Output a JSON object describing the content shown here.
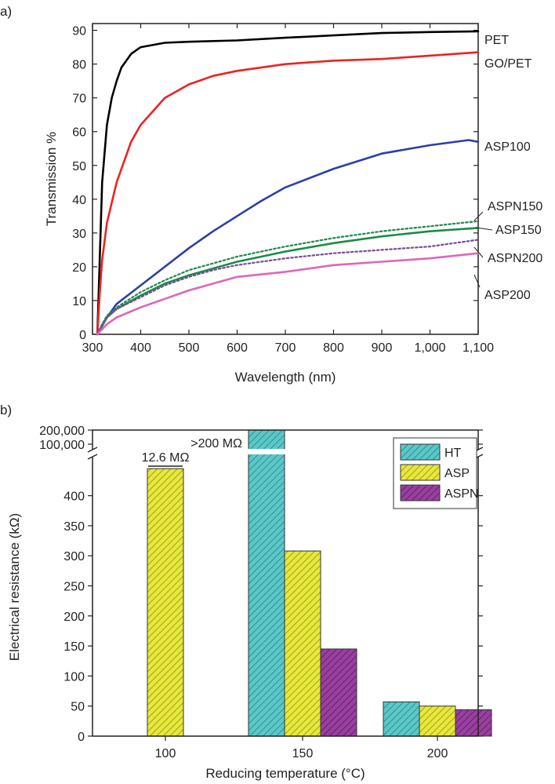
{
  "chart_data": [
    {
      "panel": "a)",
      "type": "line",
      "xlabel": "Wavelength (nm)",
      "ylabel": "Transmission %",
      "xlim": [
        300,
        1100
      ],
      "ylim": [
        0,
        92
      ],
      "xticks": [
        300,
        400,
        500,
        600,
        700,
        800,
        900,
        1000,
        1100
      ],
      "xtick_labels": [
        "300",
        "400",
        "500",
        "600",
        "700",
        "800",
        "900",
        "1,000",
        "1,100"
      ],
      "yticks": [
        0,
        10,
        20,
        30,
        40,
        50,
        60,
        70,
        80,
        90
      ],
      "series": [
        {
          "name": "PET",
          "color": "#000000",
          "style": "solid",
          "x": [
            310,
            315,
            320,
            330,
            340,
            350,
            360,
            380,
            400,
            450,
            500,
            600,
            700,
            800,
            900,
            1000,
            1100
          ],
          "y": [
            0,
            22,
            45,
            62,
            70,
            75,
            79,
            83,
            85,
            86.3,
            86.6,
            87,
            87.8,
            88.5,
            89.2,
            89.5,
            89.7
          ]
        },
        {
          "name": "GO/PET",
          "color": "#ee2222",
          "style": "solid",
          "x": [
            310,
            315,
            320,
            330,
            350,
            380,
            400,
            450,
            500,
            550,
            600,
            700,
            800,
            900,
            1000,
            1100
          ],
          "y": [
            0,
            12,
            22,
            33,
            45,
            57,
            62,
            70,
            74,
            76.5,
            78,
            80,
            81,
            81.5,
            82.5,
            83.5
          ]
        },
        {
          "name": "ASP100",
          "color": "#2b3fa8",
          "style": "solid",
          "x": [
            310,
            320,
            330,
            350,
            400,
            450,
            500,
            550,
            600,
            650,
            700,
            800,
            900,
            1000,
            1080,
            1100
          ],
          "y": [
            0,
            2.5,
            5,
            9,
            14.5,
            20,
            25.5,
            30.5,
            35,
            39.5,
            43.5,
            49,
            53.5,
            56,
            57.5,
            57
          ]
        },
        {
          "name": "ASPN150",
          "color": "#1e8a4a",
          "style": "dotted",
          "x": [
            310,
            320,
            330,
            350,
            400,
            450,
            500,
            550,
            600,
            700,
            800,
            900,
            1000,
            1100
          ],
          "y": [
            0,
            3,
            5.5,
            8,
            12.5,
            16,
            19,
            21,
            23,
            26,
            28.5,
            30.5,
            32,
            33.5
          ]
        },
        {
          "name": "ASP150",
          "color": "#1e8a4a",
          "style": "solid",
          "x": [
            310,
            320,
            330,
            350,
            400,
            450,
            500,
            550,
            600,
            700,
            800,
            900,
            1000,
            1100
          ],
          "y": [
            0,
            2.5,
            5,
            7.5,
            11.5,
            15,
            17.5,
            19.5,
            21.5,
            24.5,
            27,
            29,
            30.5,
            31.5
          ]
        },
        {
          "name": "ASPN200",
          "color": "#7a4a9a",
          "style": "dotted",
          "x": [
            310,
            320,
            330,
            350,
            400,
            450,
            500,
            550,
            600,
            700,
            800,
            900,
            1000,
            1100
          ],
          "y": [
            0,
            3,
            5,
            7.5,
            11,
            14.5,
            17,
            19,
            20.5,
            22.5,
            24,
            25,
            26,
            28
          ]
        },
        {
          "name": "ASP200",
          "color": "#dd66bb",
          "style": "solid",
          "x": [
            310,
            320,
            330,
            350,
            400,
            450,
            500,
            550,
            600,
            700,
            800,
            900,
            1000,
            1100
          ],
          "y": [
            0,
            1.5,
            3,
            5,
            8,
            10.5,
            13,
            15,
            17,
            18.5,
            20.5,
            21.5,
            22.5,
            24
          ]
        }
      ]
    },
    {
      "panel": "b)",
      "type": "bar",
      "xlabel": "Reducing temperature (°C)",
      "ylabel": "Electrical resistance (kΩ)",
      "categories": [
        "100",
        "150",
        "200"
      ],
      "ylim_lower": [
        0,
        470
      ],
      "yticks_lower": [
        0,
        50,
        100,
        150,
        200,
        250,
        300,
        350,
        400
      ],
      "ytick_labels_upper": [
        "100,000",
        "200,000"
      ],
      "series": [
        {
          "name": "HT",
          "color": "#5bc8c8",
          "values": [
            null,
            200000,
            57
          ]
        },
        {
          "name": "ASP",
          "color": "#e8e83c",
          "values": [
            12600,
            308,
            50
          ]
        },
        {
          "name": "ASPN",
          "color": "#9a3fa0",
          "values": [
            null,
            145,
            44
          ]
        }
      ],
      "annotations": [
        {
          "text": "12.6 MΩ",
          "category": "100"
        },
        {
          "text": ">200 MΩ",
          "category": "150"
        }
      ],
      "legend": "top-right"
    }
  ]
}
